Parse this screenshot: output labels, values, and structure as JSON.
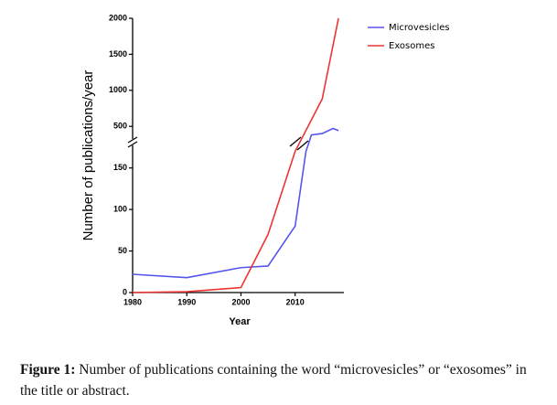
{
  "chart_data": {
    "type": "line",
    "xlabel": "Year",
    "ylabel": "Number of publications/year",
    "x": [
      1980,
      1990,
      2000,
      2005,
      2010,
      2012,
      2013,
      2015,
      2017,
      2018
    ],
    "series": [
      {
        "name": "Microvesicles",
        "color": "#5555ee",
        "values": [
          22,
          18,
          30,
          32,
          80,
          170,
          380,
          400,
          470,
          440
        ]
      },
      {
        "name": "Exosomes",
        "color": "#ee3333",
        "values": [
          0,
          1,
          6,
          70,
          170,
          null,
          null,
          880,
          null,
          2000
        ]
      }
    ],
    "xlim": [
      1980,
      2019
    ],
    "xticks": [
      1980,
      1990,
      2000,
      2010
    ],
    "ylim": [
      0,
      2000
    ],
    "ybreak": [
      175,
      350
    ],
    "yticks": [
      0,
      50,
      100,
      150,
      500,
      1000,
      1500,
      2000
    ],
    "legend": "upper right"
  },
  "caption_label": "Figure 1:",
  "caption": "Number of publications containing the word “microvesicles” or “exosomes” in the title or abstract."
}
